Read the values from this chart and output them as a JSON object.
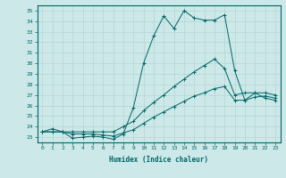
{
  "xlabel": "Humidex (Indice chaleur)",
  "bg_color": "#cce8e8",
  "line_color": "#006666",
  "xlim": [
    -0.5,
    23.5
  ],
  "ylim": [
    22.5,
    35.5
  ],
  "yticks": [
    23,
    24,
    25,
    26,
    27,
    28,
    29,
    30,
    31,
    32,
    33,
    34,
    35
  ],
  "xticks": [
    0,
    1,
    2,
    3,
    4,
    5,
    6,
    7,
    8,
    9,
    10,
    11,
    12,
    13,
    14,
    15,
    16,
    17,
    18,
    19,
    20,
    21,
    22,
    23
  ],
  "series1_x": [
    0,
    1,
    2,
    3,
    4,
    5,
    6,
    7,
    8,
    9,
    10,
    11,
    12,
    13,
    14,
    15,
    16,
    17,
    18,
    19,
    20,
    21,
    22,
    23
  ],
  "series1_y": [
    23.5,
    23.8,
    23.5,
    22.9,
    23.0,
    23.1,
    23.0,
    22.8,
    23.3,
    25.8,
    30.0,
    32.6,
    34.5,
    33.3,
    35.0,
    34.3,
    34.1,
    34.1,
    34.6,
    29.3,
    26.5,
    27.2,
    26.7,
    26.5
  ],
  "series2_x": [
    0,
    1,
    2,
    3,
    4,
    5,
    6,
    7,
    8,
    9,
    10,
    11,
    12,
    13,
    14,
    15,
    16,
    17,
    18,
    19,
    20,
    21,
    22,
    23
  ],
  "series2_y": [
    23.5,
    23.5,
    23.5,
    23.5,
    23.5,
    23.5,
    23.5,
    23.5,
    24.0,
    24.5,
    25.5,
    26.3,
    27.0,
    27.8,
    28.5,
    29.2,
    29.8,
    30.4,
    29.5,
    27.0,
    27.2,
    27.2,
    27.2,
    27.0
  ],
  "series3_x": [
    0,
    1,
    2,
    3,
    4,
    5,
    6,
    7,
    8,
    9,
    10,
    11,
    12,
    13,
    14,
    15,
    16,
    17,
    18,
    19,
    20,
    21,
    22,
    23
  ],
  "series3_y": [
    23.5,
    23.5,
    23.5,
    23.3,
    23.3,
    23.3,
    23.2,
    23.1,
    23.4,
    23.7,
    24.3,
    24.9,
    25.4,
    25.9,
    26.4,
    26.9,
    27.2,
    27.6,
    27.8,
    26.5,
    26.5,
    26.8,
    26.9,
    26.7
  ]
}
